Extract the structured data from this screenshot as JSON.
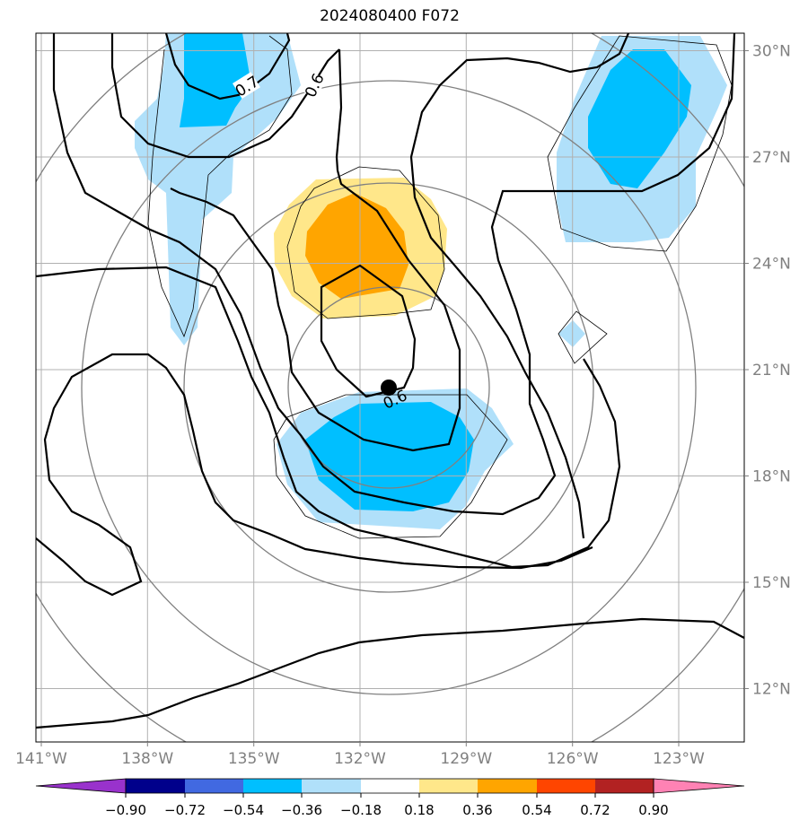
{
  "title": "2024080400 F072",
  "map": {
    "lon_range": [
      -141,
      -121
    ],
    "lat_range": [
      10.5,
      30.5
    ],
    "lon_ticks": [
      "141°W",
      "138°W",
      "135°W",
      "132°W",
      "129°W",
      "126°W",
      "123°W"
    ],
    "lat_ticks": [
      "12°N",
      "15°N",
      "18°N",
      "21°N",
      "24°N",
      "27°N",
      "30°N"
    ],
    "contour_labels": [
      "0.7",
      "0.6",
      "0.6"
    ],
    "storm_center": {
      "lon": -131.2,
      "lat": 20.5
    },
    "gridline_color": "#b0b0b0",
    "tick_color": "#808080"
  },
  "colorbar": {
    "ticks": [
      "−0.90",
      "−0.72",
      "−0.54",
      "−0.36",
      "−0.18",
      "0.18",
      "0.36",
      "0.54",
      "0.72",
      "0.90"
    ],
    "colors": [
      "#9932cc",
      "#00008b",
      "#4169e1",
      "#00bfff",
      "#b0e0fa",
      "#ffffff",
      "#ffe78a",
      "#ffa500",
      "#ff4500",
      "#b22222",
      "#ff82b4"
    ]
  }
}
